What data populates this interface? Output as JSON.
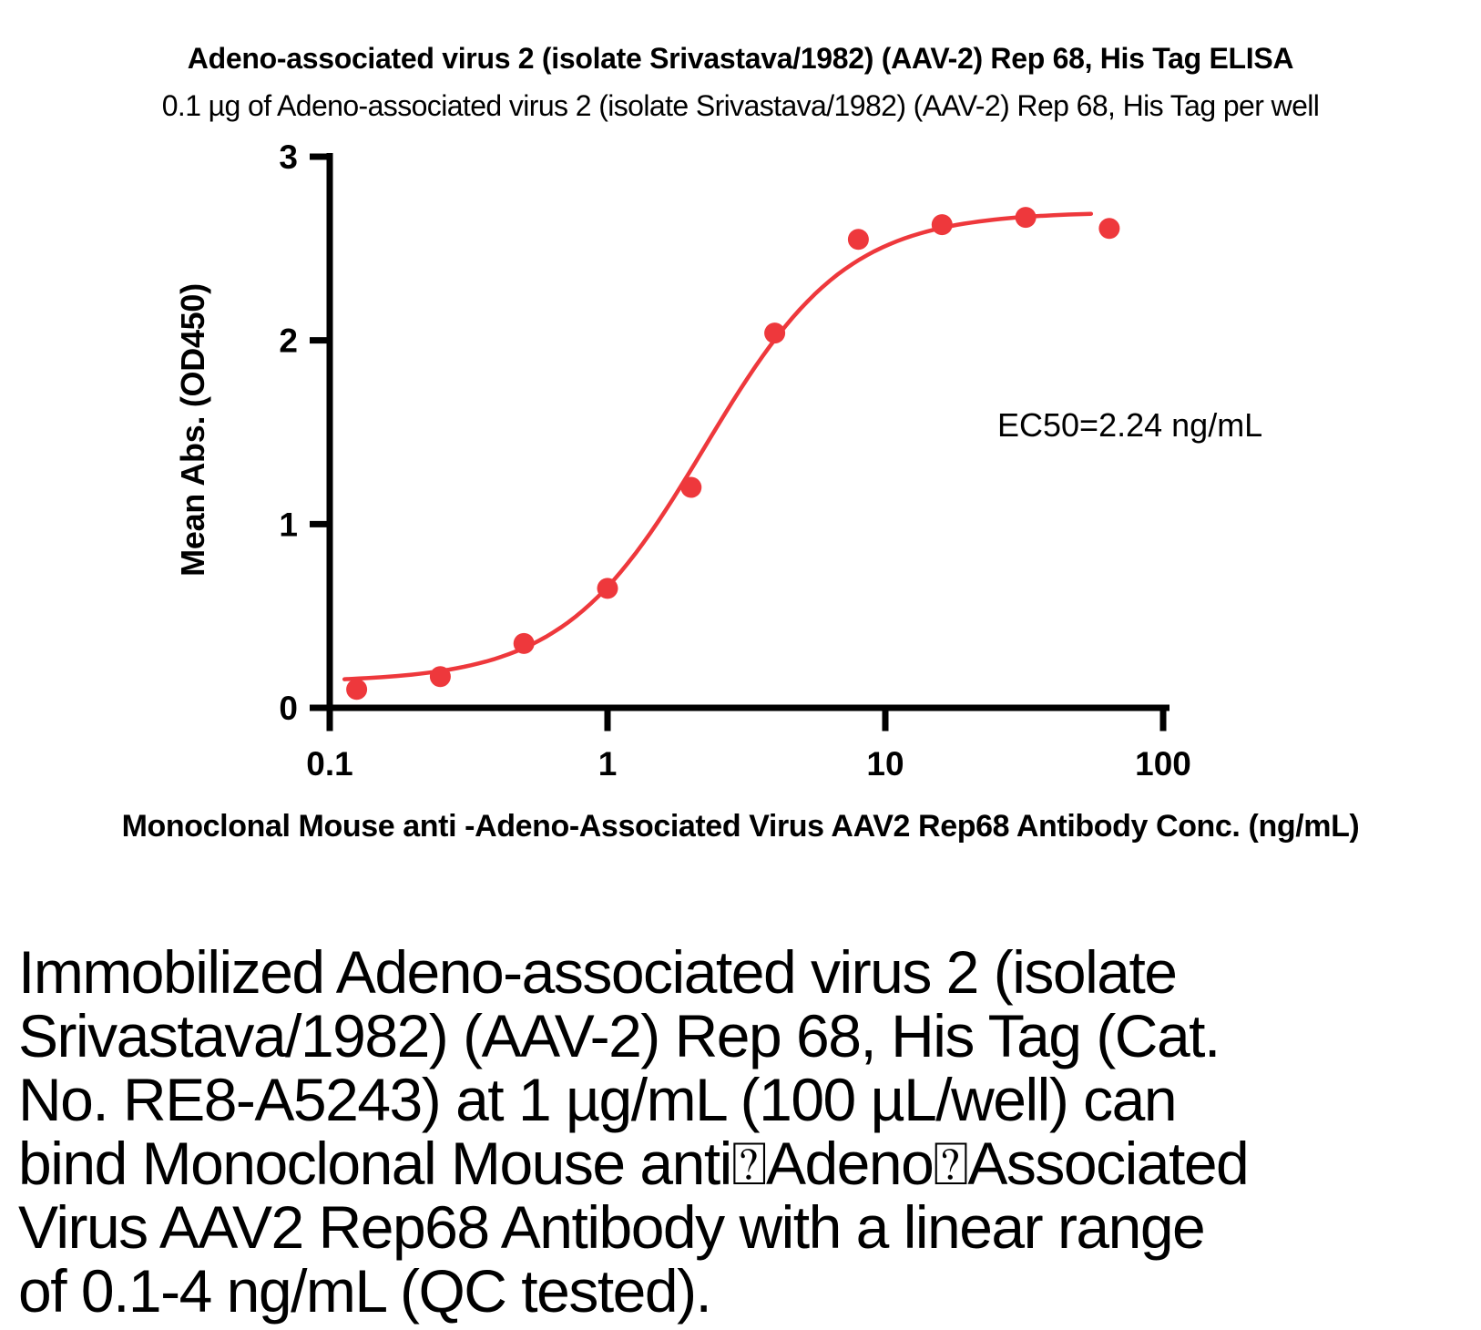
{
  "chart_data": {
    "type": "scatter",
    "title": "Adeno-associated virus 2 (isolate Srivastava/1982) (AAV-2) Rep 68, His Tag ELISA",
    "subtitle": "0.1 µg of Adeno-associated virus 2 (isolate Srivastava/1982) (AAV-2) Rep 68, His Tag per well",
    "xlabel": "Monoclonal Mouse anti -Adeno-Associated Virus AAV2 Rep68 Antibody Conc. (ng/mL)",
    "ylabel": "Mean Abs. (OD450)",
    "x_scale": "log",
    "xlim": [
      0.1,
      100
    ],
    "ylim": [
      0,
      3
    ],
    "x_ticks": [
      "0.1",
      "1",
      "10",
      "100"
    ],
    "y_ticks": [
      "0",
      "1",
      "2",
      "3"
    ],
    "x": [
      0.125,
      0.25,
      0.5,
      1,
      2,
      4,
      8,
      16,
      32,
      64
    ],
    "y": [
      0.1,
      0.17,
      0.35,
      0.65,
      1.2,
      2.04,
      2.55,
      2.63,
      2.67,
      2.61
    ],
    "fit": {
      "model": "4PL",
      "bottom": 0.14,
      "top": 2.7,
      "ec50": 2.24,
      "hill": 1.7,
      "curve_conc_range": [
        0.113,
        55
      ]
    },
    "annotation": "EC50=2.24 ng/mL",
    "marker_color": "#ee383c",
    "curve_color": "#ee383c",
    "axis_color": "#000000",
    "grid": false,
    "legend": "none"
  },
  "description": {
    "text": "Immobilized Adeno-associated virus 2 (isolate\nSrivastava/1982) (AAV-2) Rep 68, His Tag (Cat.\nNo. RE8-A5243) at 1 µg/mL (100 µL/well) can\nbind Monoclonal Mouse anti⍰Adeno⍰Associated\nVirus AAV2 Rep68 Antibody with a linear range\nof 0.1-4 ng/mL (QC tested)."
  }
}
